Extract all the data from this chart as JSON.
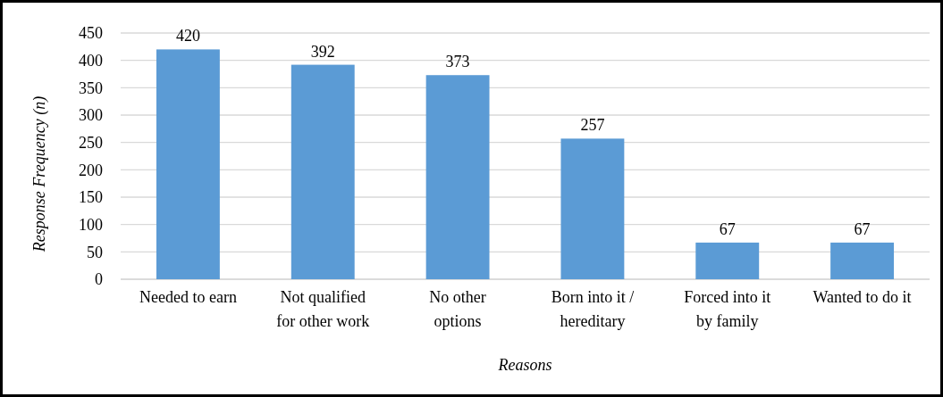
{
  "chart_data": {
    "type": "bar",
    "xlabel": "Reasons",
    "ylabel": "Response Frequency (n)",
    "categories": [
      "Needed to earn",
      "Not qualified for other work",
      "No other options",
      "Born into it / hereditary",
      "Forced into it by family",
      "Wanted to do it"
    ],
    "values": [
      420,
      392,
      373,
      257,
      67,
      67
    ],
    "color": "#5b9bd5",
    "ylim": [
      0,
      450
    ],
    "yticks": [
      0,
      50,
      100,
      150,
      200,
      250,
      300,
      350,
      400,
      450
    ],
    "grid": "y",
    "data_labels": true
  }
}
